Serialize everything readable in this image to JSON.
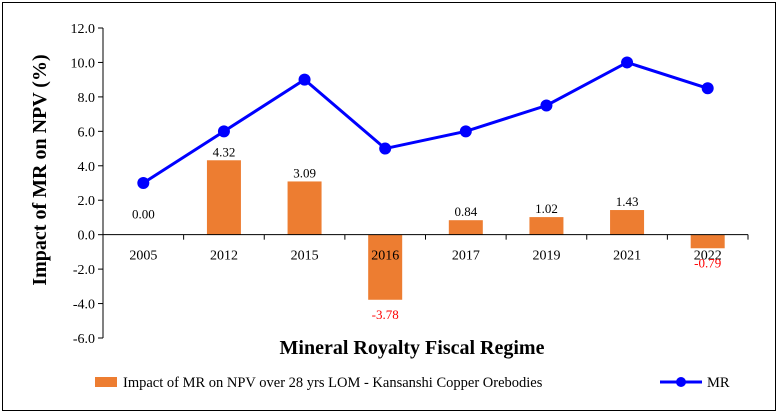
{
  "chart_data": {
    "type": "bar",
    "categories": [
      "2005",
      "2012",
      "2015",
      "2016",
      "2017",
      "2019",
      "2021",
      "2022"
    ],
    "series": [
      {
        "name": "Impact of MR on NPV over 28 yrs LOM - Kansanshi Copper Orebodies",
        "type": "bar",
        "values": [
          0.0,
          4.32,
          3.09,
          -3.78,
          0.84,
          1.02,
          1.43,
          -0.79
        ],
        "data_labels": [
          "0.00",
          "4.32",
          "3.09",
          "-3.78",
          "0.84",
          "1.02",
          "1.43",
          "-0.79"
        ]
      },
      {
        "name": "MR",
        "type": "line",
        "values": [
          3.0,
          6.0,
          9.0,
          5.0,
          6.0,
          7.5,
          10.0,
          8.5
        ]
      }
    ],
    "xlabel": "Mineral Royalty Fiscal Regime",
    "ylabel": "Impact of MR on NPV (%)",
    "ylim": [
      -6.0,
      12.0
    ],
    "yticks": [
      "12.0",
      "10.0",
      "8.0",
      "6.0",
      "4.0",
      "2.0",
      "0.0",
      "-2.0",
      "-4.0",
      "-6.0"
    ],
    "legend_position": "bottom",
    "grid": false,
    "colors": {
      "bar": "#ED7D31",
      "line": "#0000FF",
      "negative_label": "#FF0000",
      "positive_label": "#000000"
    }
  }
}
